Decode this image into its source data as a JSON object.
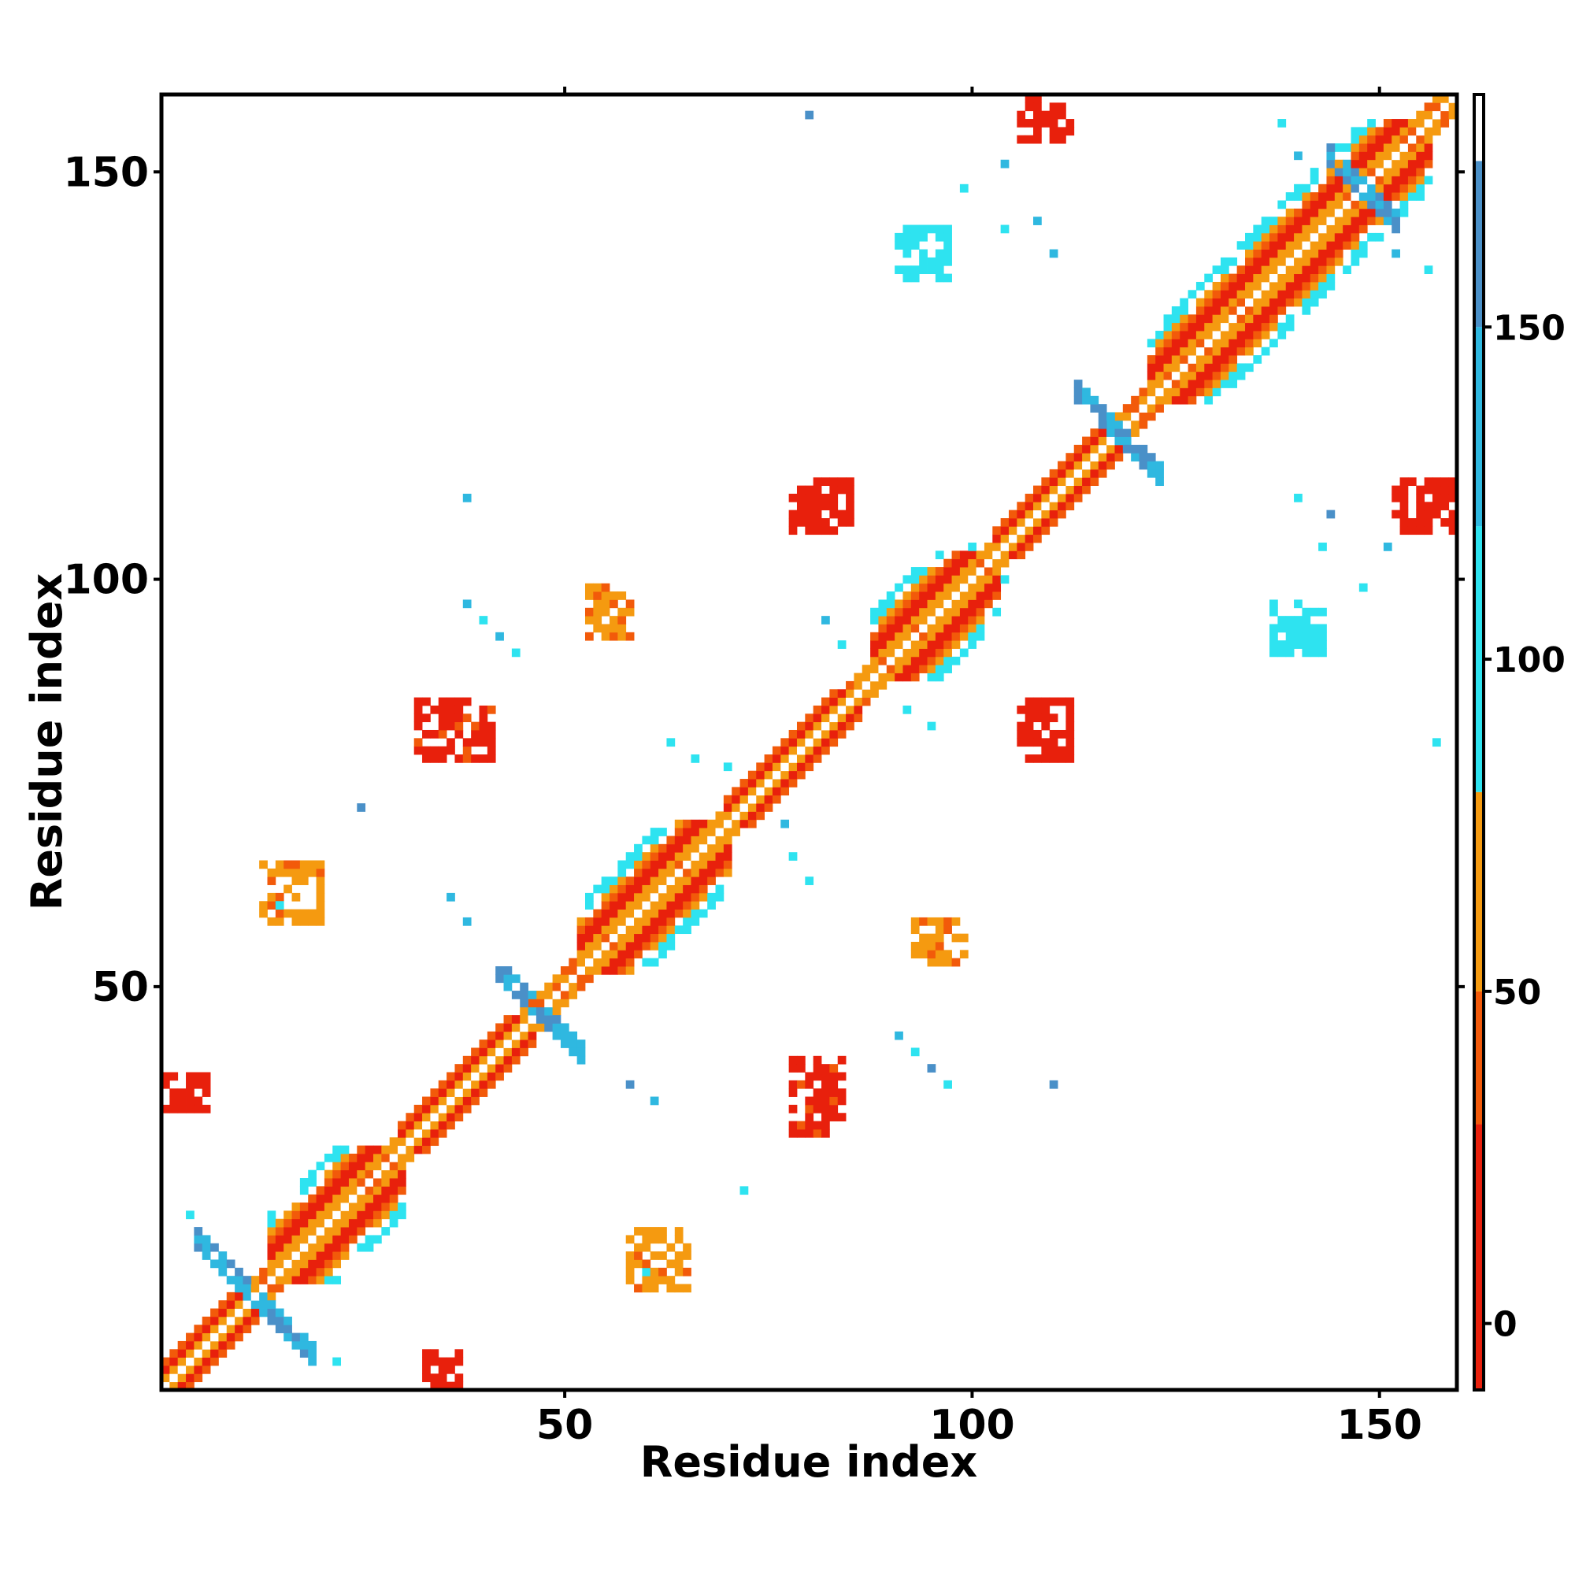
{
  "chart_data": {
    "type": "heatmap",
    "title": "",
    "xlabel": "Residue index",
    "ylabel": "Residue index",
    "xlim": [
      1,
      159
    ],
    "ylim": [
      1,
      159
    ],
    "x_ticks": [
      50,
      100,
      150
    ],
    "y_ticks": [
      50,
      100,
      150
    ],
    "grid": false,
    "colorbar": {
      "range": [
        -10,
        185
      ],
      "ticks": [
        0,
        50,
        100,
        150
      ],
      "segments": [
        {
          "from": -10,
          "to": 30,
          "color": "#e8200c"
        },
        {
          "from": 30,
          "to": 50,
          "color": "#f25a0a"
        },
        {
          "from": 50,
          "to": 80,
          "color": "#f59a10"
        },
        {
          "from": 80,
          "to": 120,
          "color": "#2ee3f0"
        },
        {
          "from": 120,
          "to": 150,
          "color": "#2fb8e0"
        },
        {
          "from": 150,
          "to": 175,
          "color": "#4a90c8"
        },
        {
          "from": 175,
          "to": 185,
          "color": "#ffffff"
        }
      ]
    },
    "helices": [
      {
        "start": 14,
        "end": 30
      },
      {
        "start": 52,
        "end": 70
      },
      {
        "start": 88,
        "end": 103
      },
      {
        "start": 122,
        "end": 156
      }
    ],
    "diagonal_blocks": [
      {
        "start": 1,
        "end": 12
      },
      {
        "start": 30,
        "end": 46
      },
      {
        "start": 70,
        "end": 86
      },
      {
        "start": 103,
        "end": 118
      }
    ],
    "junctions": [
      {
        "x": 12,
        "y": 12,
        "size": 7
      },
      {
        "x": 47,
        "y": 47,
        "size": 5
      },
      {
        "x": 118,
        "y": 118,
        "size": 5
      },
      {
        "x": 148,
        "y": 148,
        "size": 4
      }
    ],
    "patches": [
      {
        "x": [
          33,
          37
        ],
        "y": [
          1,
          5
        ],
        "value": 10
      },
      {
        "x": [
          1,
          6
        ],
        "y": [
          35,
          39
        ],
        "value": 10
      },
      {
        "x": [
          78,
          84
        ],
        "y": [
          32,
          41
        ],
        "value": 20
      },
      {
        "x": [
          106,
          112
        ],
        "y": [
          78,
          85
        ],
        "value": 15
      },
      {
        "x": [
          78,
          85
        ],
        "y": [
          106,
          112
        ],
        "value": 15
      },
      {
        "x": [
          32,
          41
        ],
        "y": [
          78,
          85
        ],
        "value": 20
      },
      {
        "x": [
          106,
          112
        ],
        "y": [
          154,
          159
        ],
        "value": 10
      },
      {
        "x": [
          152,
          159
        ],
        "y": [
          106,
          112
        ],
        "value": 10
      },
      {
        "x": [
          93,
          99
        ],
        "y": [
          53,
          58
        ],
        "value": 60
      },
      {
        "x": [
          53,
          58
        ],
        "y": [
          93,
          99
        ],
        "value": 60
      },
      {
        "x": [
          13,
          20
        ],
        "y": [
          58,
          65
        ],
        "value": 60
      },
      {
        "x": [
          58,
          65
        ],
        "y": [
          13,
          20
        ],
        "value": 60
      },
      {
        "x": [
          137,
          143
        ],
        "y": [
          91,
          97
        ],
        "value": 100
      },
      {
        "x": [
          91,
          97
        ],
        "y": [
          137,
          143
        ],
        "value": 100
      }
    ],
    "speckles": [
      {
        "x": 38,
        "y": 97
      },
      {
        "x": 40,
        "y": 95
      },
      {
        "x": 42,
        "y": 93
      },
      {
        "x": 44,
        "y": 91
      },
      {
        "x": 97,
        "y": 38
      },
      {
        "x": 95,
        "y": 40
      },
      {
        "x": 93,
        "y": 42
      },
      {
        "x": 91,
        "y": 44
      },
      {
        "x": 63,
        "y": 80
      },
      {
        "x": 66,
        "y": 78
      },
      {
        "x": 70,
        "y": 77
      },
      {
        "x": 80,
        "y": 63
      },
      {
        "x": 78,
        "y": 66
      },
      {
        "x": 77,
        "y": 70
      },
      {
        "x": 36,
        "y": 61
      },
      {
        "x": 38,
        "y": 58
      },
      {
        "x": 61,
        "y": 36
      },
      {
        "x": 58,
        "y": 38
      },
      {
        "x": 82,
        "y": 95
      },
      {
        "x": 84,
        "y": 92
      },
      {
        "x": 95,
        "y": 82
      },
      {
        "x": 92,
        "y": 84
      },
      {
        "x": 100,
        "y": 104
      },
      {
        "x": 104,
        "y": 100
      },
      {
        "x": 140,
        "y": 110
      },
      {
        "x": 144,
        "y": 108
      },
      {
        "x": 110,
        "y": 140
      },
      {
        "x": 108,
        "y": 144
      },
      {
        "x": 152,
        "y": 140
      },
      {
        "x": 156,
        "y": 138
      },
      {
        "x": 140,
        "y": 152
      },
      {
        "x": 138,
        "y": 156
      },
      {
        "x": 80,
        "y": 157
      },
      {
        "x": 157,
        "y": 80
      },
      {
        "x": 110,
        "y": 38
      },
      {
        "x": 38,
        "y": 110
      },
      {
        "x": 60,
        "y": 15
      },
      {
        "x": 15,
        "y": 60
      },
      {
        "x": 72,
        "y": 25
      },
      {
        "x": 25,
        "y": 72
      },
      {
        "x": 104,
        "y": 151
      },
      {
        "x": 151,
        "y": 104
      },
      {
        "x": 99,
        "y": 148
      },
      {
        "x": 148,
        "y": 99
      },
      {
        "x": 4,
        "y": 22
      },
      {
        "x": 22,
        "y": 4
      },
      {
        "x": 143,
        "y": 104
      },
      {
        "x": 104,
        "y": 143
      }
    ],
    "seed": 20240601
  }
}
